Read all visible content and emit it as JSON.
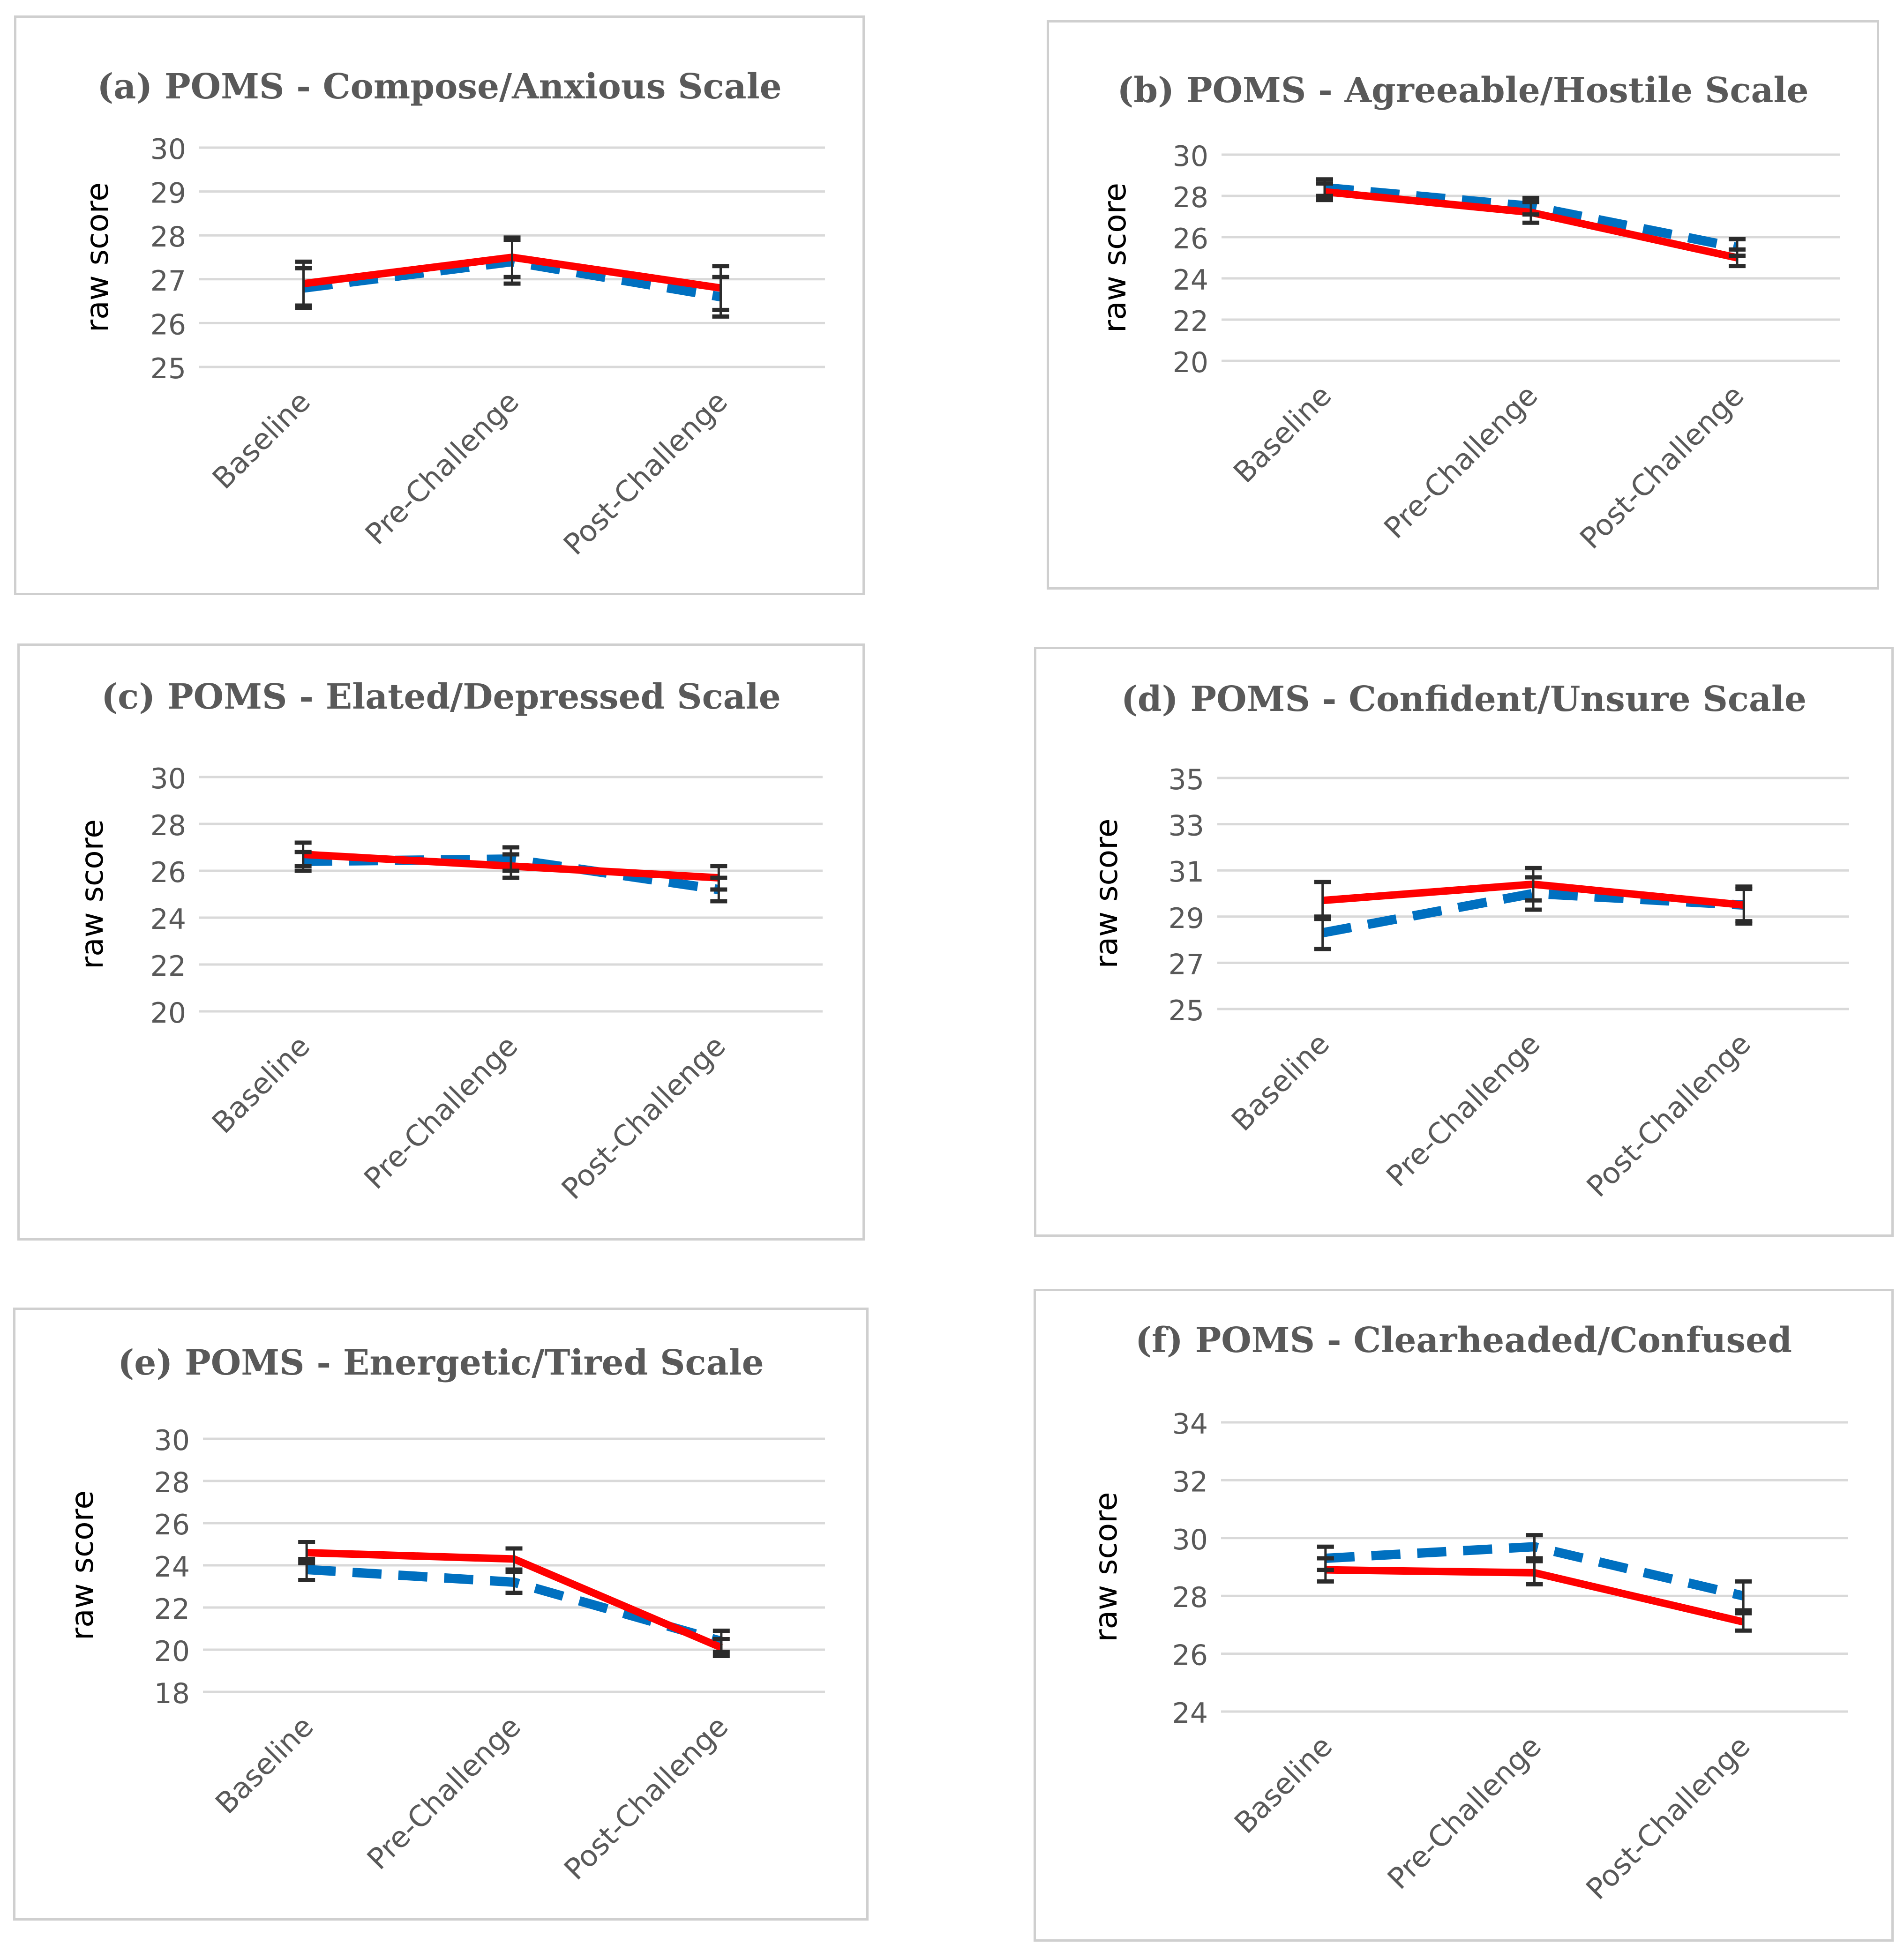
{
  "colors": {
    "solid_series": "#ff0000",
    "dashed_series": "#0070c0",
    "error_bar": "#2b2b2b",
    "gridline": "#d9d9d9",
    "title_text": "#595959",
    "tick_text": "#595959",
    "ylabel_text": "#000000"
  },
  "chart_data": [
    {
      "type": "line",
      "title": "(a) POMS - Compose/Anxious Scale",
      "ylabel": "raw score",
      "xlabel": "",
      "categories": [
        "Baseline",
        "Pre-Challenge",
        "Post-Challenge"
      ],
      "yticks": [
        25,
        26,
        27,
        28,
        29,
        30
      ],
      "ylim": [
        25,
        30
      ],
      "grid": true,
      "series": [
        {
          "name": "solid",
          "style": "solid",
          "values": [
            26.9,
            27.5,
            26.8
          ],
          "err": [
            0.5,
            0.45,
            0.5
          ]
        },
        {
          "name": "dashed",
          "style": "dashed",
          "values": [
            26.8,
            27.4,
            26.6
          ],
          "err": [
            0.45,
            0.5,
            0.45
          ]
        }
      ]
    },
    {
      "type": "line",
      "title": "(b) POMS - Agreeable/Hostile Scale",
      "ylabel": "raw score",
      "xlabel": "",
      "categories": [
        "Baseline",
        "Pre-Challenge",
        "Post-Challenge"
      ],
      "yticks": [
        20,
        22,
        24,
        26,
        28,
        30
      ],
      "ylim": [
        20,
        30
      ],
      "grid": true,
      "series": [
        {
          "name": "solid",
          "style": "solid",
          "values": [
            28.2,
            27.2,
            25.0
          ],
          "err": [
            0.4,
            0.5,
            0.4
          ]
        },
        {
          "name": "dashed",
          "style": "dashed",
          "values": [
            28.4,
            27.5,
            25.5
          ],
          "err": [
            0.4,
            0.4,
            0.4
          ]
        }
      ]
    },
    {
      "type": "line",
      "title": "(c) POMS - Elated/Depressed Scale",
      "ylabel": "raw score",
      "xlabel": "",
      "categories": [
        "Baseline",
        "Pre-Challenge",
        "Post-Challenge"
      ],
      "yticks": [
        20,
        22,
        24,
        26,
        28,
        30
      ],
      "ylim": [
        20,
        30
      ],
      "grid": true,
      "series": [
        {
          "name": "solid",
          "style": "solid",
          "values": [
            26.7,
            26.2,
            25.7
          ],
          "err": [
            0.5,
            0.5,
            0.5
          ]
        },
        {
          "name": "dashed",
          "style": "dashed",
          "values": [
            26.4,
            26.5,
            25.2
          ],
          "err": [
            0.4,
            0.5,
            0.5
          ]
        }
      ]
    },
    {
      "type": "line",
      "title": "(d) POMS - Confident/Unsure Scale",
      "ylabel": "raw score",
      "xlabel": "",
      "categories": [
        "Baseline",
        "Pre-Challenge",
        "Post-Challenge"
      ],
      "yticks": [
        25,
        27,
        29,
        31,
        33,
        35
      ],
      "ylim": [
        25,
        35
      ],
      "grid": true,
      "series": [
        {
          "name": "solid",
          "style": "solid",
          "values": [
            29.7,
            30.4,
            29.5
          ],
          "err": [
            0.8,
            0.7,
            0.8
          ]
        },
        {
          "name": "dashed",
          "style": "dashed",
          "values": [
            28.3,
            30.0,
            29.5
          ],
          "err": [
            0.7,
            0.7,
            0.7
          ]
        }
      ]
    },
    {
      "type": "line",
      "title": "(e) POMS - Energetic/Tired Scale",
      "ylabel": "raw score",
      "xlabel": "",
      "categories": [
        "Baseline",
        "Pre-Challenge",
        "Post-Challenge"
      ],
      "yticks": [
        18,
        20,
        22,
        24,
        26,
        28,
        30
      ],
      "ylim": [
        18,
        30
      ],
      "grid": true,
      "series": [
        {
          "name": "solid",
          "style": "solid",
          "values": [
            24.6,
            24.3,
            20.1
          ],
          "err": [
            0.5,
            0.5,
            0.4
          ]
        },
        {
          "name": "dashed",
          "style": "dashed",
          "values": [
            23.8,
            23.2,
            20.4
          ],
          "err": [
            0.5,
            0.5,
            0.5
          ]
        }
      ]
    },
    {
      "type": "line",
      "title": "(f) POMS - Clearheaded/Confused",
      "ylabel": "raw score",
      "xlabel": "",
      "categories": [
        "Baseline",
        "Pre-Challenge",
        "Post-Challenge"
      ],
      "yticks": [
        24,
        26,
        28,
        30,
        32,
        34
      ],
      "ylim": [
        24,
        34
      ],
      "grid": true,
      "series": [
        {
          "name": "solid",
          "style": "solid",
          "values": [
            28.9,
            28.8,
            27.1
          ],
          "err": [
            0.4,
            0.4,
            0.3
          ]
        },
        {
          "name": "dashed",
          "style": "dashed",
          "values": [
            29.3,
            29.7,
            28.0
          ],
          "err": [
            0.4,
            0.4,
            0.5
          ]
        }
      ]
    }
  ]
}
